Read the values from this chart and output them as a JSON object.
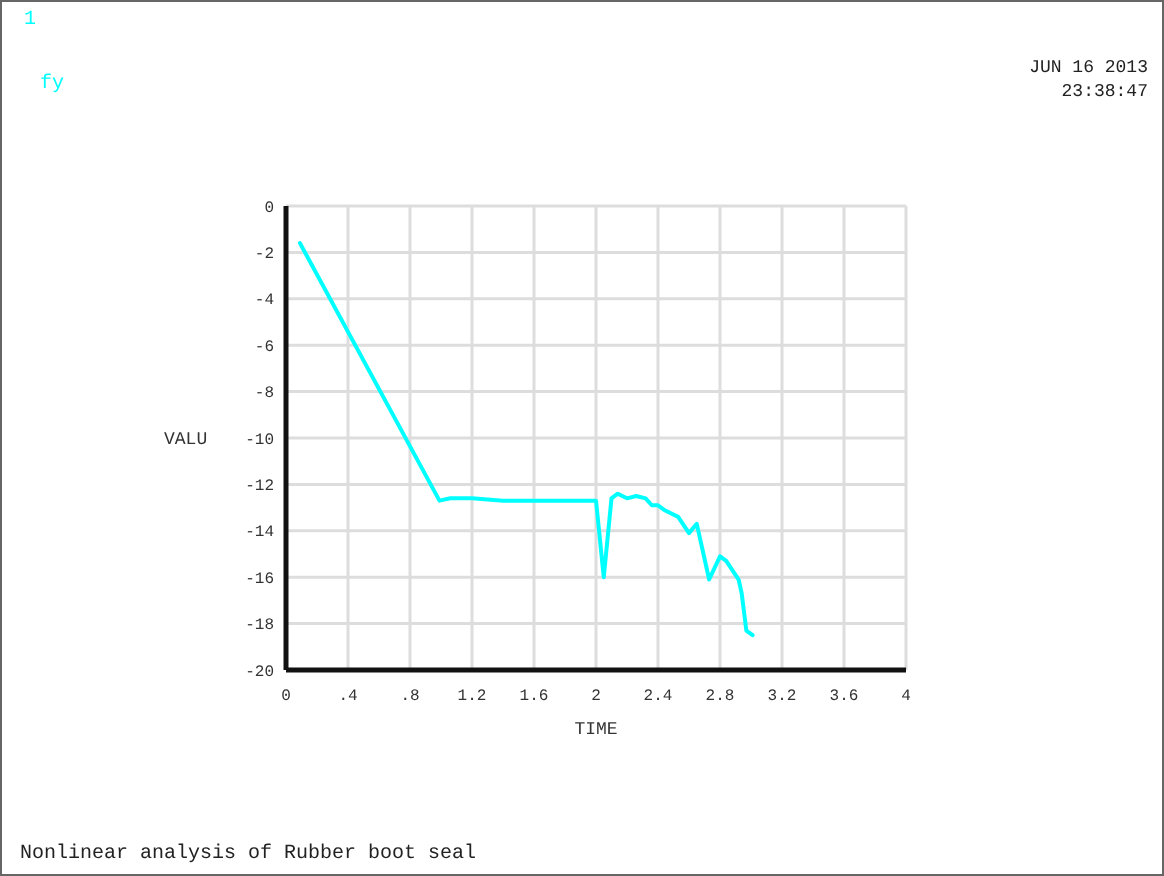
{
  "chart_data": {
    "type": "line",
    "xlabel": "TIME",
    "ylabel": "VALU",
    "annotations": [
      "1",
      "JUN 16 2013",
      "23:38:47",
      "Nonlinear analysis of Rubber boot seal"
    ],
    "series": [
      {
        "name": "fy",
        "color": "#00ffff",
        "x": [
          0.09,
          0.99,
          1.06,
          1.2,
          1.4,
          1.6,
          1.8,
          2.0,
          2.05,
          2.1,
          2.14,
          2.2,
          2.26,
          2.32,
          2.36,
          2.4,
          2.44,
          2.53,
          2.6,
          2.65,
          2.68,
          2.73,
          2.8,
          2.84,
          2.92,
          2.94,
          2.97,
          3.01
        ],
        "values": [
          -1.6,
          -12.7,
          -12.6,
          -12.6,
          -12.7,
          -12.7,
          -12.7,
          -12.7,
          -16.0,
          -12.6,
          -12.4,
          -12.6,
          -12.5,
          -12.6,
          -12.9,
          -12.9,
          -13.1,
          -13.4,
          -14.1,
          -13.7,
          -14.6,
          -16.1,
          -15.1,
          -15.3,
          -16.1,
          -16.7,
          -18.3,
          -18.5
        ]
      }
    ],
    "xlim": [
      0,
      4
    ],
    "ylim": [
      -20,
      0
    ],
    "xticks": [
      0,
      {
        "value": 0.4,
        "label": ".4"
      },
      {
        "value": 0.8,
        "label": ".8"
      },
      1.2,
      1.6,
      2,
      2.4,
      2.8,
      3.2,
      3.6,
      4
    ],
    "yticks": [
      0,
      -2,
      -4,
      -6,
      -8,
      -10,
      -12,
      -14,
      -16,
      -18,
      -20
    ],
    "grid": true,
    "legend": "top left",
    "line_style": "solid",
    "marker": "none"
  }
}
